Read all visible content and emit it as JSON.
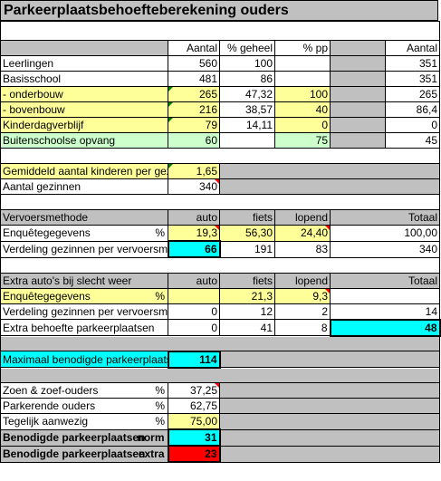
{
  "title": "Parkeerplaatsbehoefteberekening ouders",
  "section1": {
    "headers": [
      "Aantal",
      "% geheel",
      "% pp",
      "Aantal"
    ],
    "rows": [
      {
        "label": "Leerlingen",
        "aantal": "560",
        "geheel": "100",
        "pp": "",
        "aantal2": "351"
      },
      {
        "label": "Basisschool",
        "aantal": "481",
        "geheel": "86",
        "pp": "",
        "aantal2": "351"
      },
      {
        "label": "- onderbouw",
        "aantal": "265",
        "geheel": "47,32",
        "pp": "100",
        "aantal2": "265"
      },
      {
        "label": "- bovenbouw",
        "aantal": "216",
        "geheel": "38,57",
        "pp": "40",
        "aantal2": "86,4"
      },
      {
        "label": "Kinderdagverblijf",
        "aantal": "79",
        "geheel": "14,11",
        "pp": "0",
        "aantal2": "0"
      },
      {
        "label": "Buitenschoolse opvang",
        "aantal": "60",
        "geheel": "",
        "pp": "75",
        "aantal2": "45"
      }
    ]
  },
  "section2": {
    "avg_label": "Gemiddeld aantal kinderen per gezin",
    "avg_value": "1,65",
    "gezinnen_label": "Aantal gezinnen",
    "gezinnen_value": "340"
  },
  "section3": {
    "header_label": "Vervoersmethode",
    "headers": [
      "auto",
      "fiets",
      "lopend",
      "Totaal"
    ],
    "enquete_label": "Enquêtegegevens",
    "pct": "%",
    "enquete": [
      "19,3",
      "56,30",
      "24,40",
      "100,00"
    ],
    "verdeling_label": "Verdeling gezinnen per vervoersmiddel",
    "verdeling": [
      "66",
      "191",
      "83",
      "340"
    ]
  },
  "section4": {
    "header_label": "Extra auto's bij slecht weer",
    "headers": [
      "auto",
      "fiets",
      "lopend",
      "Totaal"
    ],
    "enquete_label": "Enquêtegegevens",
    "pct": "%",
    "enquete": [
      "",
      "21,3",
      "9,3",
      ""
    ],
    "verdeling_label": "Verdeling gezinnen per vervoersmiddel",
    "verdeling": [
      "0",
      "12",
      "2",
      "14"
    ],
    "extra_label": "Extra behoefte parkeerplaatsen",
    "extra": [
      "0",
      "41",
      "8",
      "48"
    ]
  },
  "section5": {
    "max_label": "Maximaal benodigde parkeerplaatsen",
    "max_value": "114"
  },
  "section6": {
    "rows": [
      {
        "label": "Zoen & zoef-ouders",
        "unit": "%",
        "value": "37,25"
      },
      {
        "label": "Parkerende ouders",
        "unit": "%",
        "value": "62,75"
      },
      {
        "label": "Tegelijk aanwezig",
        "unit": "%",
        "value": "75,00"
      }
    ],
    "norm_label": "Benodigde parkeerplaatsen",
    "norm_unit": "norm",
    "norm_value": "31",
    "extra_label": "Benodigde parkeerplaatsen",
    "extra_unit": "extra",
    "extra_value": "23"
  },
  "colors": {
    "header_gray": "#c0c0c0",
    "input_yellow": "#ffff99",
    "green": "#ccffcc",
    "result_cyan": "#00ffff",
    "alert_red": "#ff0000"
  }
}
